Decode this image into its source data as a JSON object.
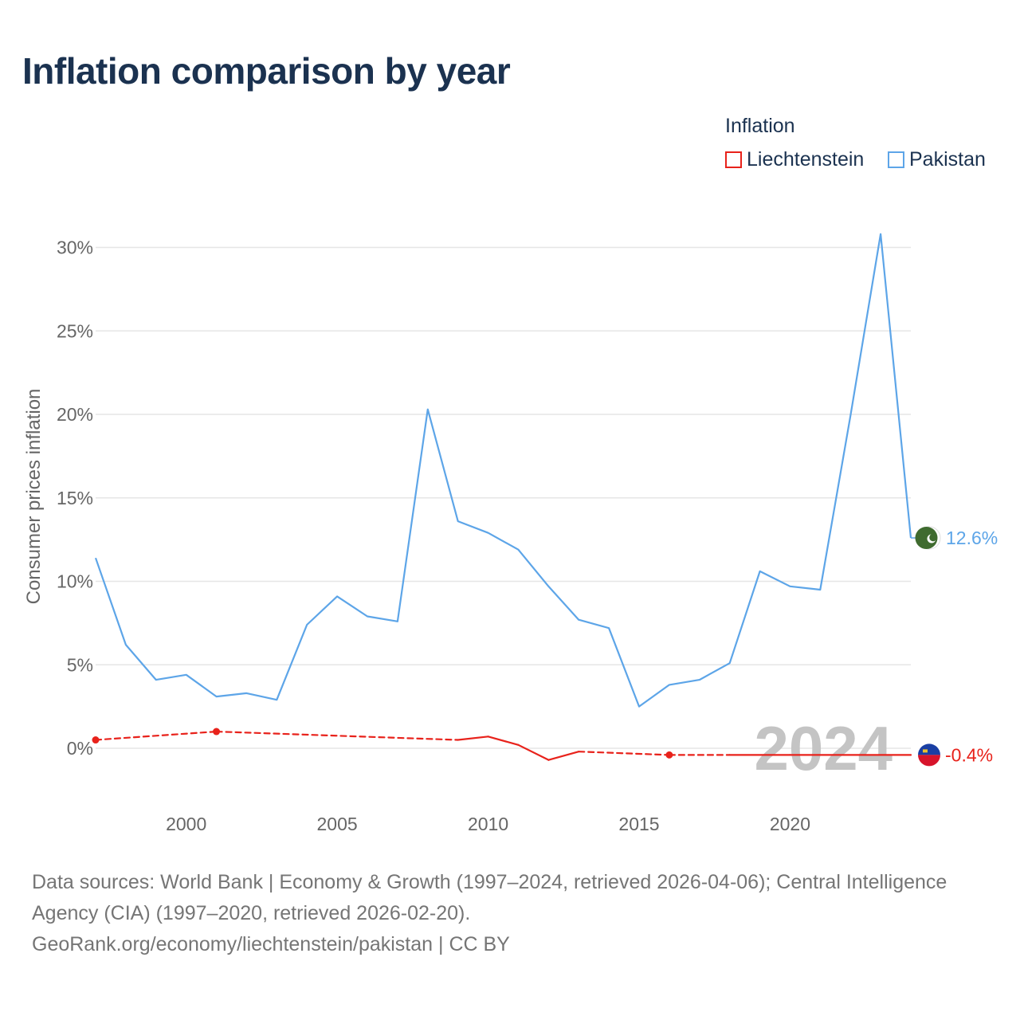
{
  "chart_data": {
    "type": "line",
    "title": "Inflation comparison by year",
    "ylabel": "Consumer prices inflation",
    "xlabel": "",
    "ylim": [
      -3,
      31
    ],
    "xlim": [
      1997,
      2024
    ],
    "yticks": [
      0,
      5,
      10,
      15,
      20,
      25,
      30
    ],
    "ytick_labels": [
      "0%",
      "5%",
      "10%",
      "15%",
      "20%",
      "25%",
      "30%"
    ],
    "xticks": [
      2000,
      2005,
      2010,
      2015,
      2020
    ],
    "xtick_labels": [
      "2000",
      "2005",
      "2010",
      "2015",
      "2020"
    ],
    "legend_title": "Inflation",
    "legend_position": "top-right",
    "current_year_label": "2024",
    "series": [
      {
        "name": "Liechtenstein",
        "color": "#e8221b",
        "end_label": "-0.4%",
        "flag_icon": "liechtenstein-flag-icon",
        "points": [
          {
            "x": 1997,
            "y": 0.5,
            "style": "dashed",
            "marker": true
          },
          {
            "x": 2001,
            "y": 1.0,
            "style": "dashed",
            "marker": true
          },
          {
            "x": 2009,
            "y": 0.5,
            "style": "solid",
            "marker": false
          },
          {
            "x": 2010,
            "y": 0.7,
            "style": "solid",
            "marker": false
          },
          {
            "x": 2011,
            "y": 0.2,
            "style": "solid",
            "marker": false
          },
          {
            "x": 2012,
            "y": -0.7,
            "style": "solid",
            "marker": false
          },
          {
            "x": 2013,
            "y": -0.2,
            "style": "dashed",
            "marker": false
          },
          {
            "x": 2016,
            "y": -0.4,
            "style": "dashed",
            "marker": true
          },
          {
            "x": 2018,
            "y": -0.4,
            "style": "solid",
            "marker": false
          },
          {
            "x": 2020,
            "y": -0.4,
            "style": "solid",
            "marker": false
          },
          {
            "x": 2024,
            "y": -0.4,
            "style": "solid",
            "marker": false
          }
        ]
      },
      {
        "name": "Pakistan",
        "color": "#5da5e8",
        "end_label": "12.6%",
        "flag_icon": "pakistan-flag-icon",
        "points": [
          {
            "x": 1997,
            "y": 11.4
          },
          {
            "x": 1998,
            "y": 6.2
          },
          {
            "x": 1999,
            "y": 4.1
          },
          {
            "x": 2000,
            "y": 4.4
          },
          {
            "x": 2001,
            "y": 3.1
          },
          {
            "x": 2002,
            "y": 3.3
          },
          {
            "x": 2003,
            "y": 2.9
          },
          {
            "x": 2004,
            "y": 7.4
          },
          {
            "x": 2005,
            "y": 9.1
          },
          {
            "x": 2006,
            "y": 7.9
          },
          {
            "x": 2007,
            "y": 7.6
          },
          {
            "x": 2008,
            "y": 20.3
          },
          {
            "x": 2009,
            "y": 13.6
          },
          {
            "x": 2010,
            "y": 12.9
          },
          {
            "x": 2011,
            "y": 11.9
          },
          {
            "x": 2012,
            "y": 9.7
          },
          {
            "x": 2013,
            "y": 7.7
          },
          {
            "x": 2014,
            "y": 7.2
          },
          {
            "x": 2015,
            "y": 2.5
          },
          {
            "x": 2016,
            "y": 3.8
          },
          {
            "x": 2017,
            "y": 4.1
          },
          {
            "x": 2018,
            "y": 5.1
          },
          {
            "x": 2019,
            "y": 10.6
          },
          {
            "x": 2020,
            "y": 9.7
          },
          {
            "x": 2021,
            "y": 9.5
          },
          {
            "x": 2022,
            "y": 19.9
          },
          {
            "x": 2023,
            "y": 30.8
          },
          {
            "x": 2024,
            "y": 12.6
          }
        ]
      }
    ]
  },
  "footer": {
    "source_line1": "Data sources: World Bank | Economy & Growth (1997–2024, retrieved 2026-04-06); Central Intelligence",
    "source_line2": "Agency (CIA) (1997–2020, retrieved 2026-02-20).",
    "source_line3": "GeoRank.org/economy/liechtenstein/pakistan | CC BY"
  }
}
